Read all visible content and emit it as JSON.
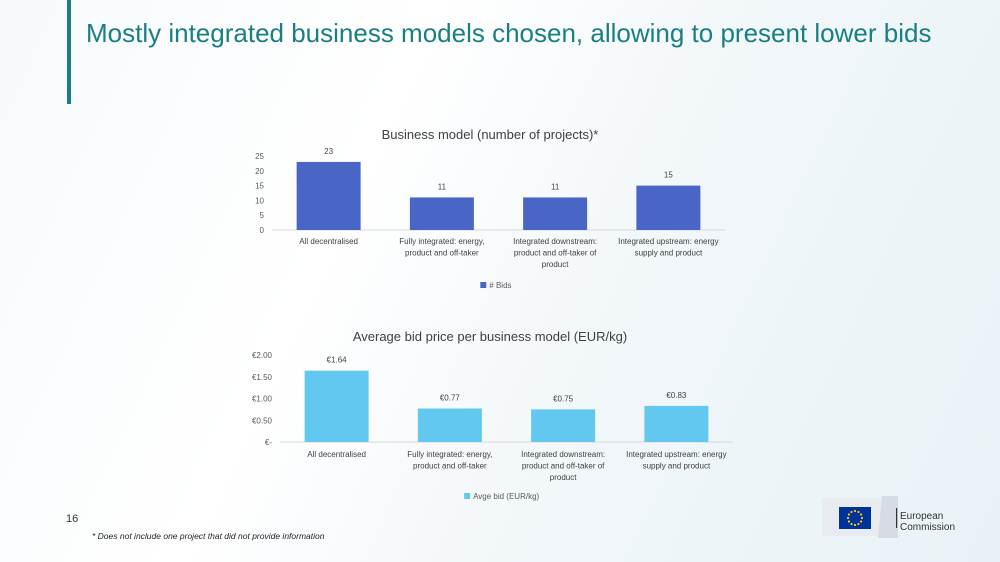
{
  "slide": {
    "title": "Mostly integrated business models chosen, allowing to present lower bids",
    "number": "16",
    "footnote": "* Does not include one project that did not provide information",
    "accent_color": "#1a7f82",
    "logo": {
      "line1": "European",
      "line2": "Commission",
      "flag_color": "#003399",
      "star_color": "#ffcc00"
    }
  },
  "chart_data": [
    {
      "type": "bar",
      "title": "Business model (number of projects)*",
      "categories": [
        [
          "All decentralised"
        ],
        [
          "Fully integrated: energy,",
          "product and off-taker"
        ],
        [
          "Integrated downstream:",
          "product and off-taker of",
          "product"
        ],
        [
          "Integrated upstream: energy",
          "supply and product"
        ]
      ],
      "series": [
        {
          "name": "# Bids",
          "values": [
            23,
            11,
            11,
            15
          ],
          "color": "#4966c7"
        }
      ],
      "data_labels": [
        "23",
        "11",
        "11",
        "15"
      ],
      "y_ticks": [
        "25",
        "20",
        "15",
        "10",
        "5",
        "0"
      ],
      "ylim": [
        0,
        25
      ],
      "legend": "bottom"
    },
    {
      "type": "bar",
      "title": "Average bid price per business model (EUR/kg)",
      "categories": [
        [
          "All decentralised"
        ],
        [
          "Fully integrated: energy,",
          "product and off-taker"
        ],
        [
          "Integrated downstream:",
          "product and off-taker of",
          "product"
        ],
        [
          "Integrated upstream: energy",
          "supply and product"
        ]
      ],
      "series": [
        {
          "name": "Avge bid (EUR/kg)",
          "values": [
            1.64,
            0.77,
            0.75,
            0.83
          ],
          "color": "#62c8ef"
        }
      ],
      "data_labels": [
        "€1.64",
        "€0.77",
        "€0.75",
        "€0.83"
      ],
      "y_ticks": [
        "€2.00",
        "€1.50",
        "€1.00",
        "€0.50",
        "€-"
      ],
      "ylim": [
        0,
        2
      ],
      "legend": "bottom"
    }
  ]
}
